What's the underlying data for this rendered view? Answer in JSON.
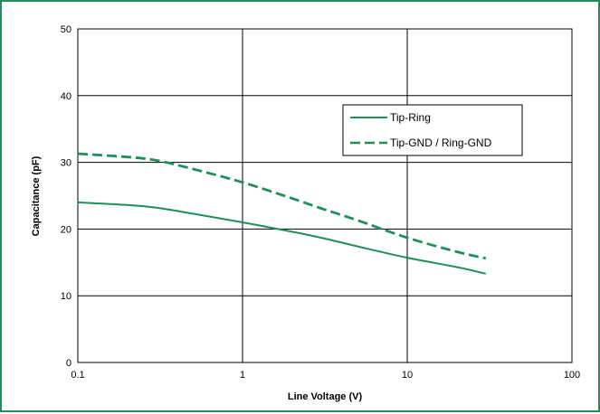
{
  "colors": {
    "frame": "#1f8f5a",
    "series": "#1f8f5a",
    "grid": "#000000"
  },
  "chart_data": {
    "type": "line",
    "xscale": "log",
    "xlabel": "Line Voltage (V)",
    "ylabel": "Capacitance (pF)",
    "xlim": [
      0.1,
      100
    ],
    "ylim": [
      0,
      50
    ],
    "xticks": [
      0.1,
      1,
      10,
      100
    ],
    "xtick_labels": [
      "0.1",
      "1",
      "10",
      "100"
    ],
    "yticks": [
      0,
      10,
      20,
      30,
      40,
      50
    ],
    "ytick_labels": [
      "0",
      "10",
      "20",
      "30",
      "40",
      "50"
    ],
    "grid": true,
    "legend_position": "right-center",
    "series": [
      {
        "name": "Tip-Ring",
        "style": "solid",
        "x": [
          0.1,
          0.2,
          0.3,
          0.5,
          1,
          2,
          3,
          5,
          10,
          20,
          30
        ],
        "y": [
          24.0,
          23.6,
          23.2,
          22.3,
          21.0,
          19.6,
          18.7,
          17.4,
          15.7,
          14.3,
          13.3
        ]
      },
      {
        "name": "Tip-GND / Ring-GND",
        "style": "dashed",
        "x": [
          0.1,
          0.2,
          0.3,
          0.5,
          1,
          2,
          3,
          5,
          10,
          20,
          30
        ],
        "y": [
          31.3,
          30.8,
          30.3,
          29.0,
          27.0,
          24.6,
          23.1,
          21.3,
          18.7,
          16.6,
          15.6
        ]
      }
    ]
  }
}
